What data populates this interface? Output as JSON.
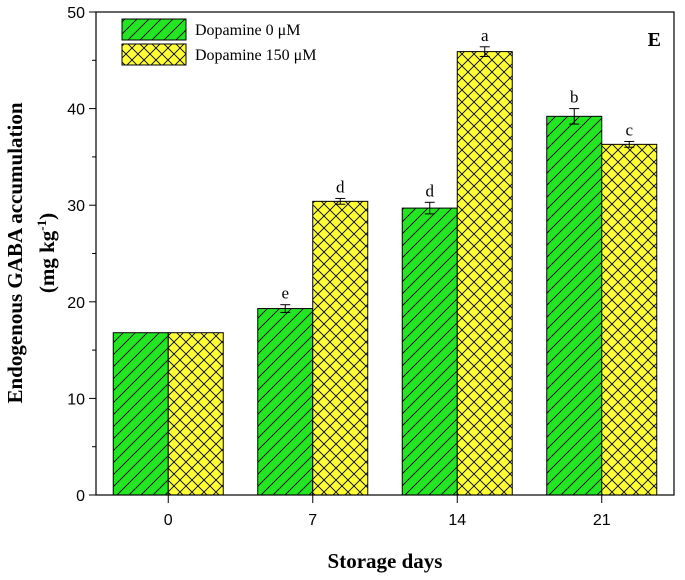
{
  "chart_data": {
    "type": "bar",
    "panel_label": "E",
    "xlabel": "Storage days",
    "ylabel_main": "Endogenous GABA accumulation",
    "ylabel_unit_prefix": "(mg kg",
    "ylabel_unit_sup": "-1",
    "ylabel_unit_suffix": ")",
    "categories": [
      "0",
      "7",
      "14",
      "21"
    ],
    "ylim": [
      0,
      50
    ],
    "yticks": [
      "0",
      "10",
      "20",
      "30",
      "40",
      "50"
    ],
    "series": [
      {
        "name": "Dopamine 0 μM",
        "color": "#22e622",
        "pattern": "diagonal",
        "values": [
          16.8,
          19.3,
          29.7,
          39.2
        ],
        "errors": [
          0.0,
          0.4,
          0.6,
          0.8
        ],
        "labels": [
          "",
          "e",
          "d",
          "b"
        ]
      },
      {
        "name": "Dopamine 150 μM",
        "color": "#ffff33",
        "pattern": "crosshatch",
        "values": [
          16.8,
          30.4,
          45.9,
          36.3
        ],
        "errors": [
          0.0,
          0.3,
          0.5,
          0.3
        ],
        "labels": [
          "",
          "d",
          "a",
          "c"
        ]
      }
    ]
  }
}
